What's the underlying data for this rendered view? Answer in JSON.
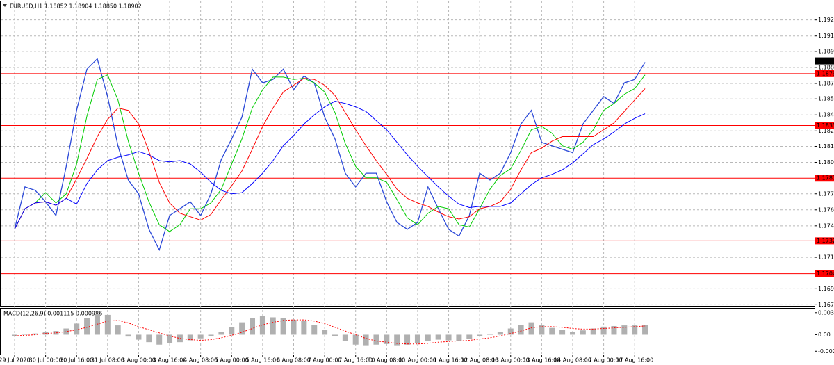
{
  "chart_data": [
    {
      "type": "line",
      "title": "EURUSD,H1  1.18852 1.18904 1.18850 1.18902",
      "categories": [
        "29 Jul 2020",
        null,
        null,
        "30 Jul 00:00",
        null,
        null,
        "30 Jul 16:00",
        null,
        null,
        "31 Jul 08:00",
        null,
        null,
        "3 Aug 00:00",
        null,
        null,
        "3 Aug 16:00",
        null,
        null,
        "4 Aug 08:00",
        null,
        null,
        "5 Aug 00:00",
        null,
        null,
        "5 Aug 16:00",
        null,
        null,
        "6 Aug 08:00",
        null,
        null,
        "7 Aug 00:00",
        null,
        null,
        "7 Aug 16:00",
        null,
        null,
        "10 Aug 08:00",
        null,
        null,
        "11 Aug 00:00",
        null,
        null,
        "11 Aug 16:00",
        null,
        null,
        "12 Aug 08:00",
        null,
        null,
        "13 Aug 00:00",
        null,
        null,
        "13 Aug 16:00",
        null,
        null,
        "14 Aug 08:00",
        null,
        null,
        "17 Aug 00:00",
        null,
        null,
        "17 Aug 16:00",
        null
      ],
      "series": [
        {
          "color": "#2a48d8",
          "values": [
            1.1743,
            1.178,
            1.1777,
            1.1767,
            1.1755,
            1.1798,
            1.1847,
            1.1883,
            1.1892,
            1.1859,
            1.1816,
            1.1786,
            1.1774,
            1.1743,
            1.1725,
            1.1755,
            1.1761,
            1.1767,
            1.1755,
            1.1774,
            1.1804,
            1.1822,
            1.1841,
            1.1883,
            1.1871,
            1.1874,
            1.1883,
            1.1865,
            1.1877,
            1.1871,
            1.1841,
            1.1822,
            1.1792,
            1.178,
            1.1792,
            1.1792,
            1.1767,
            1.1749,
            1.1743,
            1.1749,
            1.178,
            1.1761,
            1.1743,
            1.1737,
            1.1755,
            1.1792,
            1.1786,
            1.1792,
            1.181,
            1.1835,
            1.1847,
            1.1819,
            1.1816,
            1.1813,
            1.181,
            1.1835,
            1.1847,
            1.1859,
            1.1853,
            1.1871,
            1.1874,
            1.1889
          ]
        },
        {
          "color": "#00cc00",
          "values": [
            1.1743,
            1.1761,
            1.1766,
            1.1775,
            1.1766,
            1.1774,
            1.18,
            1.1842,
            1.1874,
            1.1878,
            1.1856,
            1.182,
            1.1792,
            1.1767,
            1.1747,
            1.1741,
            1.1747,
            1.1761,
            1.1761,
            1.1766,
            1.1778,
            1.18,
            1.1822,
            1.1849,
            1.1865,
            1.1876,
            1.1876,
            1.1874,
            1.1875,
            1.1871,
            1.1863,
            1.1845,
            1.1818,
            1.1798,
            1.1788,
            1.1788,
            1.1784,
            1.1769,
            1.1753,
            1.1747,
            1.1757,
            1.1763,
            1.1761,
            1.1747,
            1.1745,
            1.1761,
            1.1778,
            1.179,
            1.1796,
            1.1812,
            1.183,
            1.1833,
            1.1827,
            1.1816,
            1.1813,
            1.1819,
            1.183,
            1.1847,
            1.1853,
            1.1861,
            1.1866,
            1.1878
          ]
        },
        {
          "color": "#ff0000",
          "values": [
            1.1743,
            1.1761,
            1.1766,
            1.1767,
            1.1764,
            1.177,
            1.1787,
            1.1805,
            1.1824,
            1.1839,
            1.1849,
            1.1847,
            1.1835,
            1.1811,
            1.1784,
            1.1766,
            1.1757,
            1.1754,
            1.1751,
            1.1756,
            1.1769,
            1.1781,
            1.1794,
            1.1813,
            1.1833,
            1.1849,
            1.1863,
            1.1869,
            1.1875,
            1.1874,
            1.1869,
            1.186,
            1.1845,
            1.183,
            1.1816,
            1.1803,
            1.1791,
            1.1778,
            1.177,
            1.1766,
            1.1763,
            1.1758,
            1.1754,
            1.1752,
            1.1754,
            1.1761,
            1.1763,
            1.1767,
            1.1778,
            1.1795,
            1.181,
            1.1814,
            1.182,
            1.1824,
            1.1824,
            1.1824,
            1.1824,
            1.183,
            1.1836,
            1.1846,
            1.1856,
            1.1866
          ]
        },
        {
          "color": "#0000ff",
          "values": [
            1.1743,
            1.1761,
            1.1766,
            1.1767,
            1.1764,
            1.177,
            1.1765,
            1.1783,
            1.1795,
            1.1803,
            1.1806,
            1.1808,
            1.1811,
            1.1808,
            1.1803,
            1.1802,
            1.1803,
            1.18,
            1.1793,
            1.1784,
            1.1777,
            1.1774,
            1.1775,
            1.1783,
            1.1792,
            1.1803,
            1.1816,
            1.1825,
            1.1835,
            1.1843,
            1.185,
            1.1855,
            1.1853,
            1.185,
            1.1846,
            1.1838,
            1.183,
            1.1819,
            1.1808,
            1.1798,
            1.1789,
            1.178,
            1.1772,
            1.1765,
            1.1762,
            1.1763,
            1.1763,
            1.1763,
            1.1766,
            1.1774,
            1.1782,
            1.1788,
            1.1791,
            1.1795,
            1.1801,
            1.1809,
            1.1817,
            1.1822,
            1.1828,
            1.1835,
            1.184,
            1.1844
          ]
        }
      ],
      "ylim": [
        1.1676,
        1.1941
      ],
      "yticks": [
        {
          "value": 1.1926,
          "label": "1.19260"
        },
        {
          "value": 1.1912,
          "label": "1.19120"
        },
        1.18985,
        1.18845,
        1.18705,
        {
          "value": 1.1857,
          "label": "1.18570"
        },
        {
          "value": 1.1843,
          "label": "1.18430"
        },
        {
          "value": 1.1829,
          "label": "1.18290"
        },
        1.18155,
        1.18015,
        {
          "value": 1.1774,
          "label": "1.17740"
        },
        {
          "value": 1.176,
          "label": "1.17600"
        },
        {
          "value": 1.1746,
          "label": "1.17460"
        },
        1.17185,
        {
          "value": 1.1691,
          "label": "1.16910"
        },
        {
          "value": 1.1677,
          "label": "1.16770"
        }
      ],
      "levels": [
        1.18791,
        1.18337,
        1.17877,
        1.17329,
        1.17042
      ],
      "level_color": "#ff0000",
      "current_price": 1.18902,
      "grid": true
    },
    {
      "type": "bar",
      "title": "MACD(12,26,9) 0.001115 0.000986",
      "values": [
        -0.0002,
        0.0,
        0.0002,
        0.0005,
        0.0006,
        0.001,
        0.0018,
        0.0027,
        0.0033,
        0.0032,
        0.0015,
        -0.0003,
        -0.0008,
        -0.0012,
        -0.0016,
        -0.0014,
        -0.0012,
        -0.0009,
        -0.0006,
        -0.0002,
        0.0005,
        0.0012,
        0.002,
        0.0027,
        0.003,
        0.0028,
        0.0027,
        0.0024,
        0.0022,
        0.0016,
        0.0008,
        -0.0002,
        -0.001,
        -0.0016,
        -0.0017,
        -0.0016,
        -0.0015,
        -0.0017,
        -0.0016,
        -0.0014,
        -0.001,
        -0.0008,
        -0.0009,
        -0.001,
        -0.0007,
        -0.0002,
        0.0,
        0.0004,
        0.001,
        0.0016,
        0.002,
        0.0016,
        0.0011,
        0.0008,
        0.0005,
        0.0007,
        0.001,
        0.0013,
        0.0014,
        0.0015,
        0.0015,
        0.0016
      ],
      "color": "#b0b0b0",
      "signal": {
        "color": "#ff0000",
        "values": [
          -0.0002,
          -0.0001,
          0.0,
          0.0002,
          0.0003,
          0.0005,
          0.0008,
          0.0012,
          0.0017,
          0.0022,
          0.0023,
          0.0019,
          0.0013,
          0.0008,
          0.0003,
          -0.0002,
          -0.0006,
          -0.0008,
          -0.0009,
          -0.0008,
          -0.0005,
          -0.0001,
          0.0004,
          0.001,
          0.0016,
          0.002,
          0.0023,
          0.0024,
          0.0024,
          0.0022,
          0.0018,
          0.0012,
          0.0006,
          0.0,
          -0.0006,
          -0.001,
          -0.0012,
          -0.0014,
          -0.0015,
          -0.0015,
          -0.0014,
          -0.0012,
          -0.0011,
          -0.001,
          -0.0009,
          -0.0007,
          -0.0005,
          -0.0002,
          0.0002,
          0.0006,
          0.0011,
          0.0013,
          0.0013,
          0.0012,
          0.001,
          0.0009,
          0.0009,
          0.001,
          0.0011,
          0.0012,
          0.0013,
          0.0014
        ]
      },
      "ylim": [
        -0.0032,
        0.0042
      ],
      "yticks": [
        {
          "value": 0.00355,
          "label": "0.00355"
        },
        {
          "value": 0,
          "label": "0.00"
        },
        {
          "value": -0.00267,
          "label": "-0.00267"
        }
      ]
    }
  ]
}
